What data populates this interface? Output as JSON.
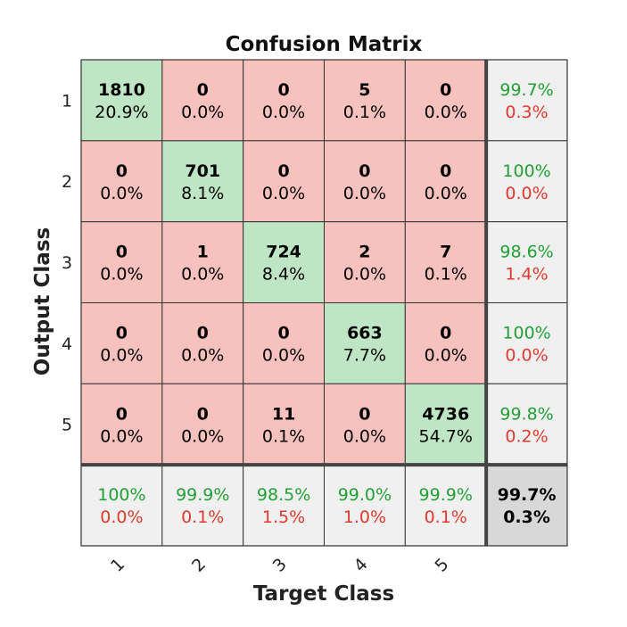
{
  "chart_data": {
    "type": "heatmap",
    "title": "Confusion Matrix",
    "xlabel": "Target Class",
    "ylabel": "Output Class",
    "classes": [
      "1",
      "2",
      "3",
      "4",
      "5"
    ],
    "counts": [
      [
        1810,
        0,
        0,
        5,
        0
      ],
      [
        0,
        701,
        0,
        0,
        0
      ],
      [
        0,
        1,
        724,
        2,
        7
      ],
      [
        0,
        0,
        0,
        663,
        0
      ],
      [
        0,
        0,
        11,
        0,
        4736
      ]
    ],
    "percents": [
      [
        "20.9%",
        "0.0%",
        "0.0%",
        "0.1%",
        "0.0%"
      ],
      [
        "0.0%",
        "8.1%",
        "0.0%",
        "0.0%",
        "0.0%"
      ],
      [
        "0.0%",
        "0.0%",
        "8.4%",
        "0.0%",
        "0.1%"
      ],
      [
        "0.0%",
        "0.0%",
        "0.0%",
        "7.7%",
        "0.0%"
      ],
      [
        "0.0%",
        "0.0%",
        "0.1%",
        "0.0%",
        "54.7%"
      ]
    ],
    "row_summary": [
      {
        "correct": "99.7%",
        "error": "0.3%"
      },
      {
        "correct": "100%",
        "error": "0.0%"
      },
      {
        "correct": "98.6%",
        "error": "1.4%"
      },
      {
        "correct": "100%",
        "error": "0.0%"
      },
      {
        "correct": "99.8%",
        "error": "0.2%"
      }
    ],
    "col_summary": [
      {
        "correct": "100%",
        "error": "0.0%"
      },
      {
        "correct": "99.9%",
        "error": "0.1%"
      },
      {
        "correct": "98.5%",
        "error": "1.5%"
      },
      {
        "correct": "99.0%",
        "error": "1.0%"
      },
      {
        "correct": "99.9%",
        "error": "0.1%"
      }
    ],
    "overall": {
      "correct": "99.7%",
      "error": "0.3%"
    },
    "colors": {
      "diagonal": "#bfe6c4",
      "off_diagonal": "#f7c1bd",
      "summary": "#f0f0f0",
      "overall": "#d8d8d8",
      "correct_text": "#21a035",
      "error_text": "#e03a2e"
    }
  }
}
